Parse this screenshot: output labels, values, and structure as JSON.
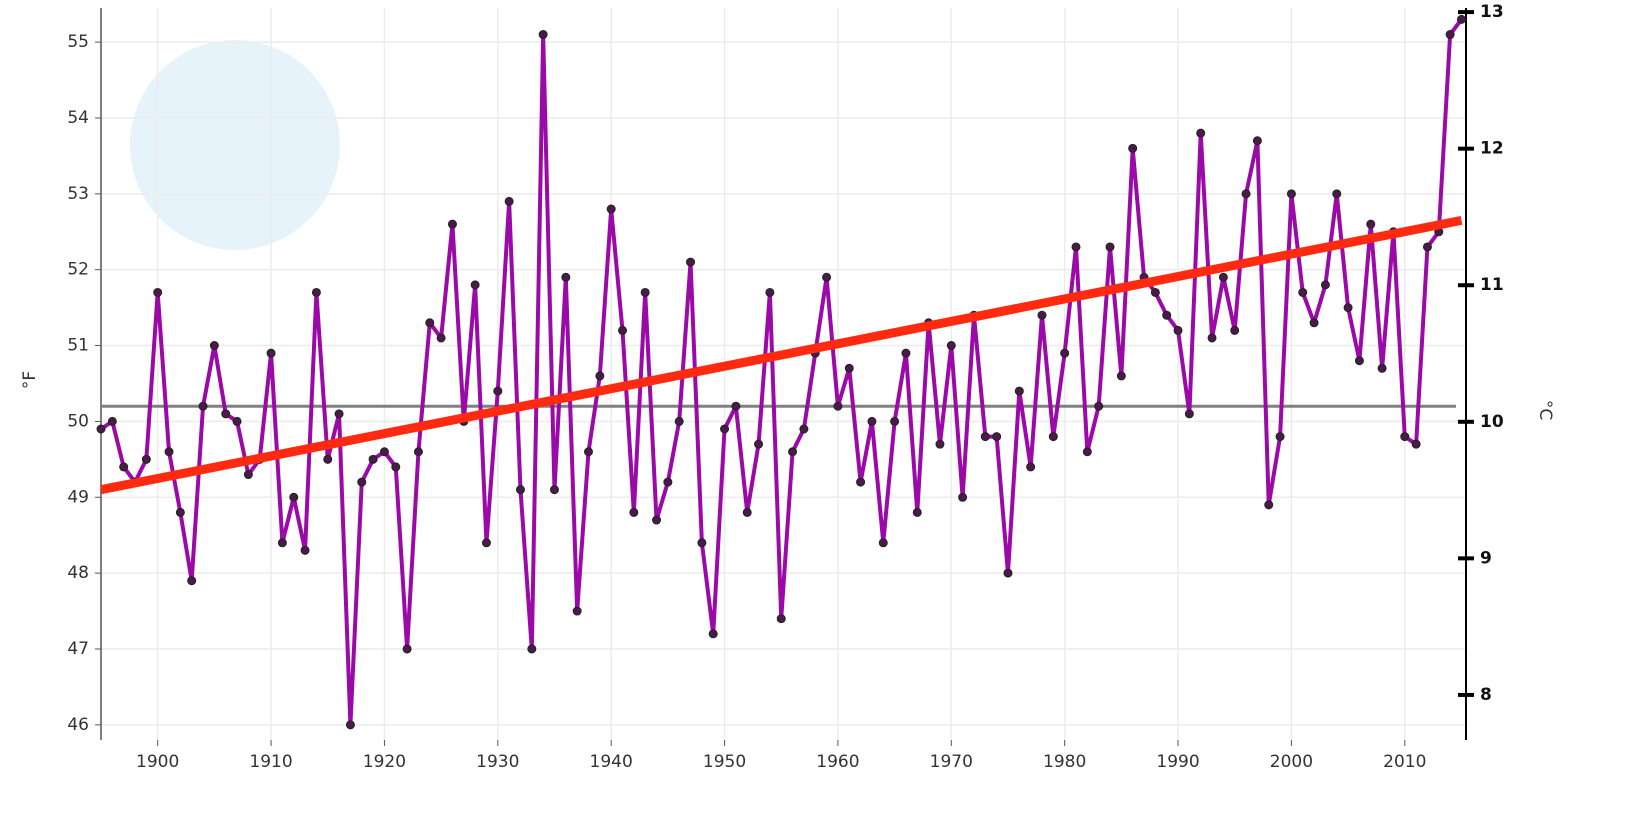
{
  "chart_data": {
    "type": "line",
    "ylabel": "°F",
    "y2label": "°C",
    "x": [
      1895,
      1896,
      1897,
      1898,
      1899,
      1900,
      1901,
      1902,
      1903,
      1904,
      1905,
      1906,
      1907,
      1908,
      1909,
      1910,
      1911,
      1912,
      1913,
      1914,
      1915,
      1916,
      1917,
      1918,
      1919,
      1920,
      1921,
      1922,
      1923,
      1924,
      1925,
      1926,
      1927,
      1928,
      1929,
      1930,
      1931,
      1932,
      1933,
      1934,
      1935,
      1936,
      1937,
      1938,
      1939,
      1940,
      1941,
      1942,
      1943,
      1944,
      1945,
      1946,
      1947,
      1948,
      1949,
      1950,
      1951,
      1952,
      1953,
      1954,
      1955,
      1956,
      1957,
      1958,
      1959,
      1960,
      1961,
      1962,
      1963,
      1964,
      1965,
      1966,
      1967,
      1968,
      1969,
      1970,
      1971,
      1972,
      1973,
      1974,
      1975,
      1976,
      1977,
      1978,
      1979,
      1980,
      1981,
      1982,
      1983,
      1984,
      1985,
      1986,
      1987,
      1988,
      1989,
      1990,
      1991,
      1992,
      1993,
      1994,
      1995,
      1996,
      1997,
      1998,
      1999,
      2000,
      2001,
      2002,
      2003,
      2004,
      2005,
      2006,
      2007,
      2008,
      2009,
      2010,
      2011,
      2012,
      2013,
      2014,
      2015
    ],
    "values": [
      49.9,
      50.0,
      49.4,
      49.2,
      49.5,
      51.7,
      49.6,
      48.8,
      47.9,
      50.2,
      51.0,
      50.1,
      50.0,
      49.3,
      49.5,
      50.9,
      48.4,
      49.0,
      48.3,
      51.7,
      49.5,
      50.1,
      46.0,
      49.2,
      49.5,
      49.6,
      49.4,
      47.0,
      49.6,
      51.3,
      51.1,
      52.6,
      50.0,
      51.8,
      48.4,
      50.4,
      52.9,
      49.1,
      47.0,
      55.1,
      49.1,
      51.9,
      47.5,
      49.6,
      50.6,
      52.8,
      51.2,
      48.8,
      51.7,
      48.7,
      49.2,
      50.0,
      52.1,
      48.4,
      47.2,
      49.9,
      50.2,
      48.8,
      49.7,
      51.7,
      47.4,
      49.6,
      49.9,
      50.9,
      51.9,
      50.2,
      50.7,
      49.2,
      50.0,
      48.4,
      50.0,
      50.9,
      48.8,
      51.3,
      49.7,
      51.0,
      49.0,
      51.4,
      49.8,
      49.8,
      48.0,
      50.4,
      49.4,
      51.4,
      49.8,
      50.9,
      52.3,
      49.6,
      50.2,
      52.3,
      50.6,
      53.6,
      51.9,
      51.7,
      51.4,
      51.2,
      50.1,
      53.8,
      51.1,
      51.9,
      51.2,
      53.0,
      53.7,
      48.9,
      49.8,
      53.0,
      51.7,
      51.3,
      51.8,
      53.0,
      51.5,
      50.8,
      52.6,
      50.7,
      52.5,
      49.8,
      49.7,
      52.3,
      52.5,
      55.1,
      55.3
    ],
    "color": "#9b0aa8",
    "mean_line": {
      "value": 50.2,
      "color": "#808080"
    },
    "trend_line": {
      "x": [
        1895,
        2015
      ],
      "values": [
        49.1,
        52.65
      ],
      "color": "#ff2a10"
    },
    "xlim": [
      1895,
      2015.4
    ],
    "xticks": [
      1900,
      1910,
      1920,
      1930,
      1940,
      1950,
      1960,
      1970,
      1980,
      1990,
      2000,
      2010
    ],
    "ylim": [
      45.8,
      55.45
    ],
    "yticks": [
      46,
      47,
      48,
      49,
      50,
      51,
      52,
      53,
      54,
      55
    ],
    "y2lim": [
      7.67,
      13.03
    ],
    "y2ticks": [
      8,
      9,
      10,
      11,
      12,
      13
    ],
    "grid": true
  }
}
